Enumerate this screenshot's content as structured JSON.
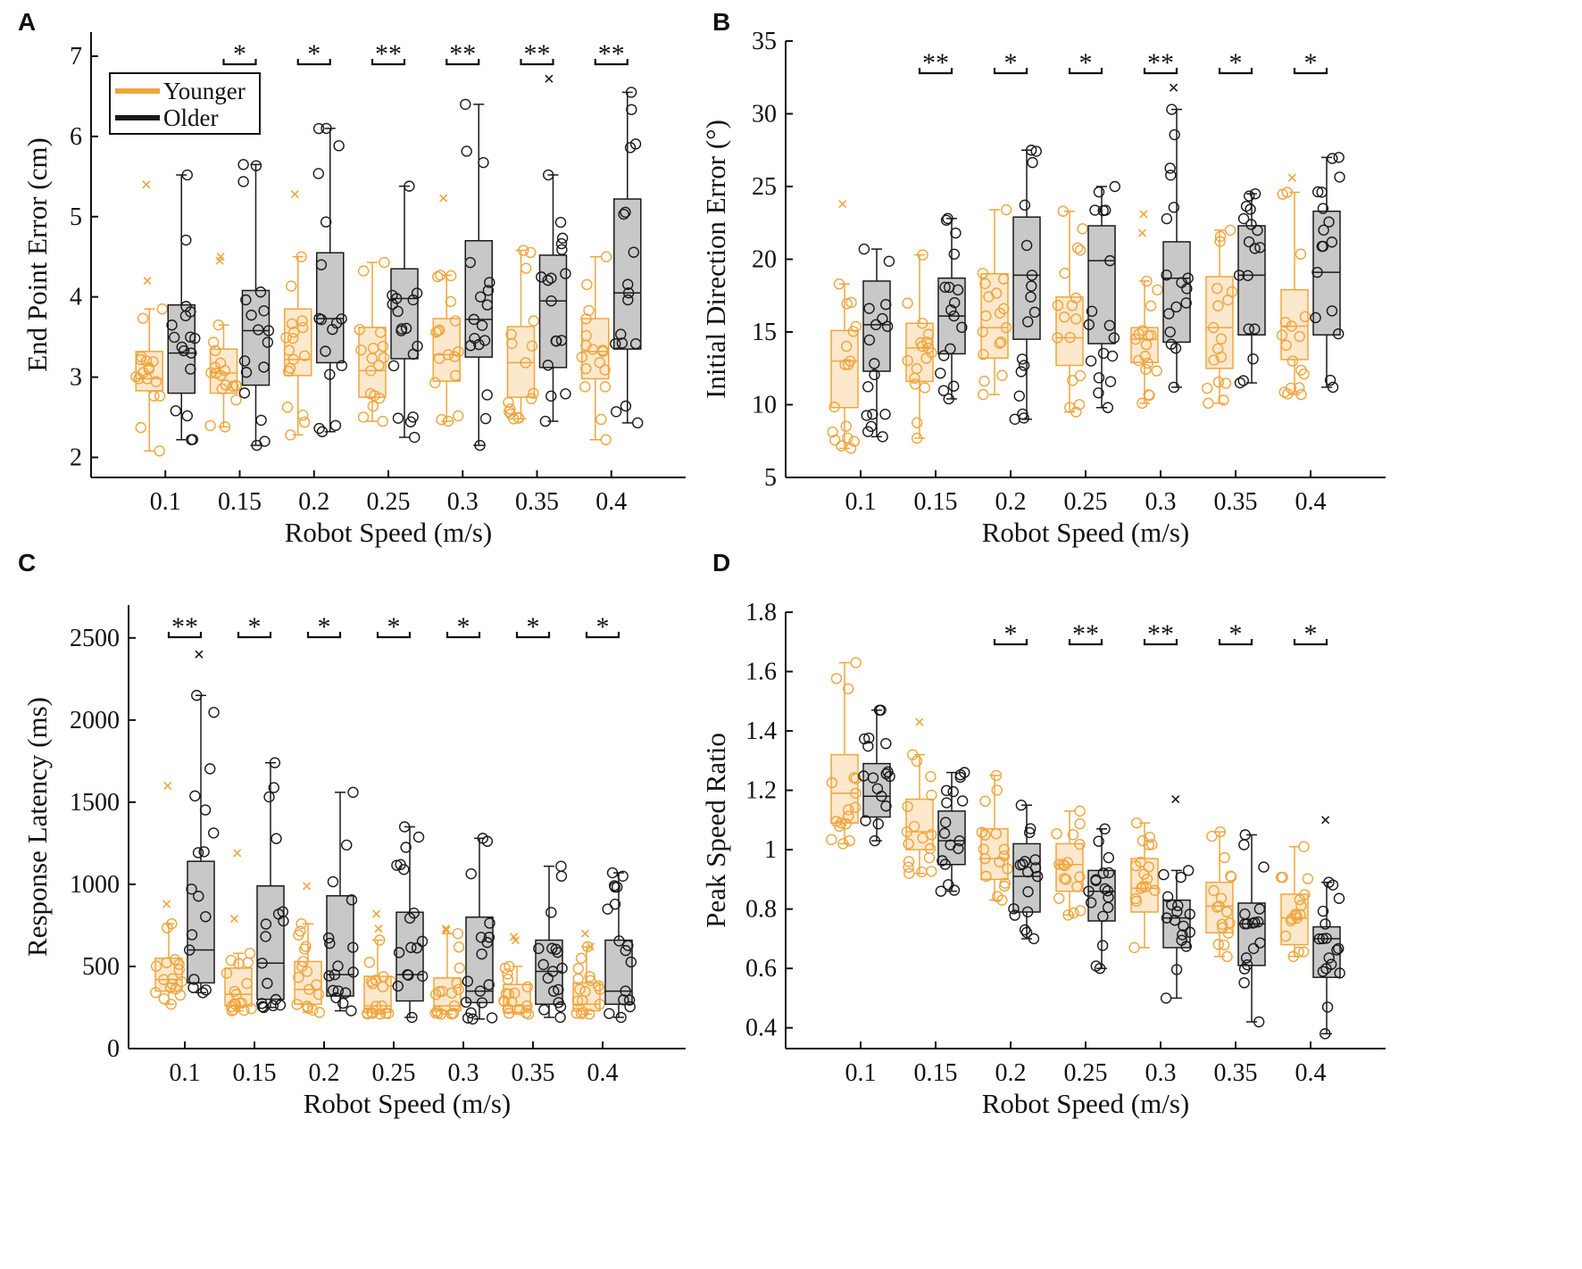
{
  "colors": {
    "younger": "#f0a53c",
    "older": "#1a1a1a",
    "older_fill": "#c8c8c8",
    "younger_fill": "#fbe8cd"
  },
  "chart_data": [
    {
      "panel": "A",
      "type": "box",
      "xlabel": "Robot Speed (m/s)",
      "ylabel": "End Point Error (cm)",
      "categories": [
        "0.1",
        "0.15",
        "0.2",
        "0.25",
        "0.3",
        "0.35",
        "0.4"
      ],
      "ylim": [
        1.75,
        7.3
      ],
      "yticks": [
        2,
        3,
        4,
        5,
        6,
        7
      ],
      "legend": {
        "position": "top-left",
        "entries": [
          "Younger",
          "Older"
        ]
      },
      "significance": [
        "",
        "*",
        "*",
        "**",
        "**",
        "**",
        "**"
      ],
      "series": [
        {
          "name": "Younger",
          "boxes": [
            {
              "min": 2.08,
              "q1": 2.83,
              "median": 2.98,
              "q3": 3.32,
              "max": 3.85,
              "outliers": [
                5.4,
                4.2
              ]
            },
            {
              "min": 2.38,
              "q1": 2.8,
              "median": 3.05,
              "q3": 3.35,
              "max": 3.65,
              "outliers": [
                4.5,
                4.45
              ]
            },
            {
              "min": 2.28,
              "q1": 3.02,
              "median": 3.22,
              "q3": 3.85,
              "max": 4.5,
              "outliers": [
                5.28
              ]
            },
            {
              "min": 2.45,
              "q1": 2.75,
              "median": 3.08,
              "q3": 3.62,
              "max": 4.43,
              "outliers": []
            },
            {
              "min": 2.45,
              "q1": 2.95,
              "median": 3.28,
              "q3": 3.73,
              "max": 4.27,
              "outliers": [
                5.23
              ]
            },
            {
              "min": 2.48,
              "q1": 2.75,
              "median": 3.18,
              "q3": 3.63,
              "max": 4.58,
              "outliers": []
            },
            {
              "min": 2.22,
              "q1": 2.98,
              "median": 3.32,
              "q3": 3.73,
              "max": 4.5,
              "outliers": []
            }
          ]
        },
        {
          "name": "Older",
          "boxes": [
            {
              "min": 2.22,
              "q1": 2.8,
              "median": 3.3,
              "q3": 3.9,
              "max": 5.52,
              "outliers": []
            },
            {
              "min": 2.15,
              "q1": 2.9,
              "median": 3.58,
              "q3": 4.08,
              "max": 5.65,
              "outliers": []
            },
            {
              "min": 2.32,
              "q1": 3.18,
              "median": 3.73,
              "q3": 4.55,
              "max": 6.1,
              "outliers": []
            },
            {
              "min": 2.25,
              "q1": 3.23,
              "median": 3.98,
              "q3": 4.35,
              "max": 5.38,
              "outliers": []
            },
            {
              "min": 2.15,
              "q1": 3.25,
              "median": 3.72,
              "q3": 4.7,
              "max": 6.4,
              "outliers": []
            },
            {
              "min": 2.45,
              "q1": 3.12,
              "median": 3.95,
              "q3": 4.52,
              "max": 5.52,
              "outliers": [
                6.72
              ]
            },
            {
              "min": 2.43,
              "q1": 3.35,
              "median": 4.05,
              "q3": 5.22,
              "max": 6.55,
              "outliers": []
            }
          ]
        }
      ]
    },
    {
      "panel": "B",
      "type": "box",
      "xlabel": "Robot Speed (m/s)",
      "ylabel": "Initial Direction Error (°)",
      "categories": [
        "0.1",
        "0.15",
        "0.2",
        "0.25",
        "0.3",
        "0.35",
        "0.4"
      ],
      "ylim": [
        5,
        35
      ],
      "yticks": [
        5,
        10,
        15,
        20,
        25,
        30,
        35
      ],
      "significance": [
        "",
        "**",
        "*",
        "*",
        "**",
        "*",
        "*"
      ],
      "series": [
        {
          "name": "Younger",
          "boxes": [
            {
              "min": 7.0,
              "q1": 9.8,
              "median": 13.0,
              "q3": 15.1,
              "max": 18.3,
              "outliers": [
                23.8
              ]
            },
            {
              "min": 7.7,
              "q1": 11.6,
              "median": 13.9,
              "q3": 15.6,
              "max": 20.3,
              "outliers": []
            },
            {
              "min": 10.7,
              "q1": 13.2,
              "median": 15.3,
              "q3": 19.0,
              "max": 23.4,
              "outliers": []
            },
            {
              "min": 9.5,
              "q1": 12.7,
              "median": 14.6,
              "q3": 17.4,
              "max": 23.3,
              "outliers": []
            },
            {
              "min": 10.1,
              "q1": 12.9,
              "median": 14.5,
              "q3": 15.3,
              "max": 18.5,
              "outliers": [
                21.8,
                23.1
              ]
            },
            {
              "min": 10.1,
              "q1": 12.5,
              "median": 15.3,
              "q3": 18.8,
              "max": 22.0,
              "outliers": []
            },
            {
              "min": 10.7,
              "q1": 13.1,
              "median": 15.4,
              "q3": 17.9,
              "max": 24.6,
              "outliers": [
                25.6
              ]
            }
          ]
        },
        {
          "name": "Older",
          "boxes": [
            {
              "min": 7.8,
              "q1": 12.3,
              "median": 15.5,
              "q3": 18.5,
              "max": 20.7,
              "outliers": []
            },
            {
              "min": 10.4,
              "q1": 13.5,
              "median": 16.1,
              "q3": 18.7,
              "max": 22.8,
              "outliers": []
            },
            {
              "min": 9.0,
              "q1": 14.5,
              "median": 18.9,
              "q3": 22.9,
              "max": 27.5,
              "outliers": []
            },
            {
              "min": 9.8,
              "q1": 14.2,
              "median": 19.9,
              "q3": 22.3,
              "max": 25.0,
              "outliers": []
            },
            {
              "min": 11.2,
              "q1": 14.3,
              "median": 18.7,
              "q3": 21.2,
              "max": 30.3,
              "outliers": [
                31.8
              ]
            },
            {
              "min": 11.5,
              "q1": 14.8,
              "median": 18.9,
              "q3": 22.3,
              "max": 24.5,
              "outliers": []
            },
            {
              "min": 11.2,
              "q1": 14.8,
              "median": 19.1,
              "q3": 23.3,
              "max": 27.0,
              "outliers": []
            }
          ]
        }
      ]
    },
    {
      "panel": "C",
      "type": "box",
      "xlabel": "Robot Speed (m/s)",
      "ylabel": "Response Latency (ms)",
      "categories": [
        "0.1",
        "0.15",
        "0.2",
        "0.25",
        "0.3",
        "0.35",
        "0.4"
      ],
      "ylim": [
        0,
        2700
      ],
      "yticks": [
        0,
        500,
        1000,
        1500,
        2000,
        2500
      ],
      "significance": [
        "**",
        "*",
        "*",
        "*",
        "*",
        "*",
        "*"
      ],
      "series": [
        {
          "name": "Younger",
          "boxes": [
            {
              "min": 270,
              "q1": 350,
              "median": 420,
              "q3": 550,
              "max": 760,
              "outliers": [
                1600,
                880
              ]
            },
            {
              "min": 230,
              "q1": 260,
              "median": 330,
              "q3": 490,
              "max": 580,
              "outliers": [
                1190,
                790
              ]
            },
            {
              "min": 220,
              "q1": 270,
              "median": 360,
              "q3": 530,
              "max": 760,
              "outliers": [
                990
              ]
            },
            {
              "min": 210,
              "q1": 220,
              "median": 260,
              "q3": 440,
              "max": 660,
              "outliers": [
                820,
                730
              ]
            },
            {
              "min": 210,
              "q1": 230,
              "median": 260,
              "q3": 430,
              "max": 700,
              "outliers": [
                730,
                720
              ]
            },
            {
              "min": 210,
              "q1": 220,
              "median": 260,
              "q3": 390,
              "max": 500,
              "outliers": [
                660,
                680
              ]
            },
            {
              "min": 210,
              "q1": 230,
              "median": 270,
              "q3": 400,
              "max": 620,
              "outliers": [
                700,
                620
              ]
            }
          ]
        },
        {
          "name": "Older",
          "boxes": [
            {
              "min": 340,
              "q1": 400,
              "median": 600,
              "q3": 1140,
              "max": 2150,
              "outliers": [
                2400
              ]
            },
            {
              "min": 250,
              "q1": 300,
              "median": 520,
              "q3": 990,
              "max": 1740,
              "outliers": []
            },
            {
              "min": 230,
              "q1": 320,
              "median": 450,
              "q3": 930,
              "max": 1560,
              "outliers": []
            },
            {
              "min": 190,
              "q1": 290,
              "median": 450,
              "q3": 830,
              "max": 1350,
              "outliers": []
            },
            {
              "min": 180,
              "q1": 280,
              "median": 350,
              "q3": 800,
              "max": 1280,
              "outliers": []
            },
            {
              "min": 190,
              "q1": 270,
              "median": 470,
              "q3": 660,
              "max": 1110,
              "outliers": []
            },
            {
              "min": 190,
              "q1": 270,
              "median": 350,
              "q3": 660,
              "max": 1070,
              "outliers": []
            }
          ]
        }
      ]
    },
    {
      "panel": "D",
      "type": "box",
      "xlabel": "Robot Speed (m/s)",
      "ylabel": "Peak Speed Ratio",
      "categories": [
        "0.1",
        "0.15",
        "0.2",
        "0.25",
        "0.3",
        "0.35",
        "0.4"
      ],
      "ylim": [
        0.33,
        1.8
      ],
      "yticks": [
        0.4,
        0.6,
        0.8,
        1,
        1.2,
        1.4,
        1.6,
        1.8
      ],
      "significance": [
        "",
        "",
        "*",
        "**",
        "**",
        "*",
        "*"
      ],
      "series": [
        {
          "name": "Younger",
          "boxes": [
            {
              "min": 1.02,
              "q1": 1.09,
              "median": 1.19,
              "q3": 1.32,
              "max": 1.63,
              "outliers": []
            },
            {
              "min": 0.92,
              "q1": 1.0,
              "median": 1.06,
              "q3": 1.17,
              "max": 1.32,
              "outliers": [
                1.43
              ]
            },
            {
              "min": 0.83,
              "q1": 0.9,
              "median": 0.97,
              "q3": 1.07,
              "max": 1.25,
              "outliers": []
            },
            {
              "min": 0.78,
              "q1": 0.86,
              "median": 0.95,
              "q3": 1.02,
              "max": 1.13,
              "outliers": []
            },
            {
              "min": 0.67,
              "q1": 0.79,
              "median": 0.87,
              "q3": 0.97,
              "max": 1.09,
              "outliers": []
            },
            {
              "min": 0.64,
              "q1": 0.72,
              "median": 0.81,
              "q3": 0.89,
              "max": 1.06,
              "outliers": []
            },
            {
              "min": 0.64,
              "q1": 0.68,
              "median": 0.77,
              "q3": 0.85,
              "max": 1.01,
              "outliers": []
            }
          ]
        },
        {
          "name": "Older",
          "boxes": [
            {
              "min": 1.03,
              "q1": 1.11,
              "median": 1.18,
              "q3": 1.29,
              "max": 1.47,
              "outliers": []
            },
            {
              "min": 0.86,
              "q1": 0.95,
              "median": 1.03,
              "q3": 1.13,
              "max": 1.26,
              "outliers": []
            },
            {
              "min": 0.7,
              "q1": 0.79,
              "median": 0.91,
              "q3": 1.02,
              "max": 1.15,
              "outliers": []
            },
            {
              "min": 0.6,
              "q1": 0.76,
              "median": 0.86,
              "q3": 0.93,
              "max": 1.07,
              "outliers": []
            },
            {
              "min": 0.5,
              "q1": 0.67,
              "median": 0.77,
              "q3": 0.83,
              "max": 0.93,
              "outliers": [
                1.17
              ]
            },
            {
              "min": 0.42,
              "q1": 0.61,
              "median": 0.75,
              "q3": 0.82,
              "max": 1.05,
              "outliers": []
            },
            {
              "min": 0.38,
              "q1": 0.57,
              "median": 0.7,
              "q3": 0.74,
              "max": 0.89,
              "outliers": [
                1.1
              ]
            }
          ]
        }
      ]
    }
  ]
}
